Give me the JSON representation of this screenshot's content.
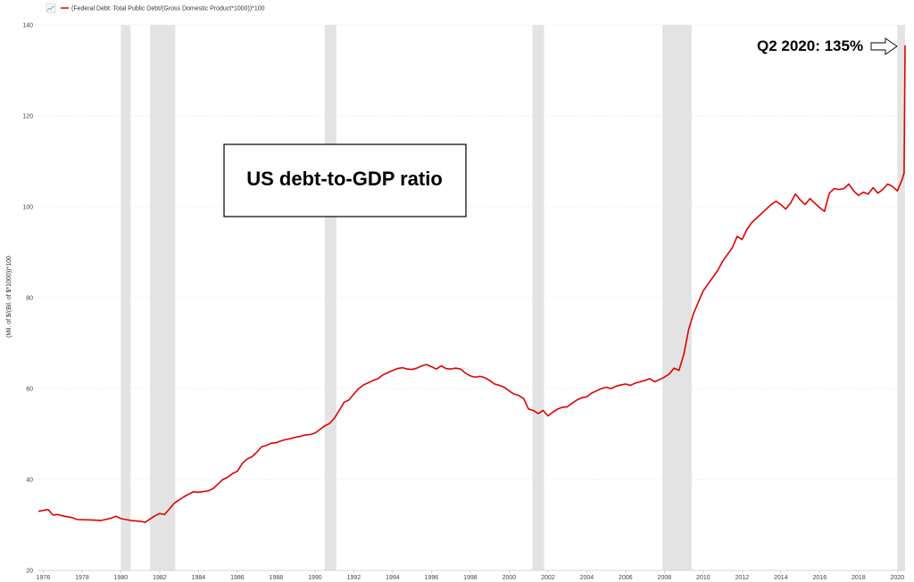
{
  "chart_data": {
    "type": "line",
    "legend": "(Federal Debt: Total Public Debt/(Gross Domestic Product*1000))*100",
    "ylabel": "(Mil. of $/(Bil. of $*1000))*100",
    "title_box": "US debt-to-GDP ratio",
    "callout": "Q2 2020: 135%",
    "ylim": [
      20,
      140
    ],
    "xlim": [
      1975.75,
      2020.4
    ],
    "yticks": [
      20,
      40,
      60,
      80,
      100,
      120,
      140
    ],
    "xticks": [
      1976,
      1978,
      1980,
      1982,
      1984,
      1986,
      1988,
      1990,
      1992,
      1994,
      1996,
      1998,
      2000,
      2002,
      2004,
      2006,
      2008,
      2010,
      2012,
      2014,
      2016,
      2018,
      2020
    ],
    "grid": "horizontal",
    "recessions": [
      [
        1980.0,
        1980.5
      ],
      [
        1981.5,
        1982.8
      ],
      [
        1990.5,
        1991.1
      ],
      [
        2001.2,
        2001.8
      ],
      [
        2007.9,
        2009.4
      ],
      [
        2020.0,
        2020.4
      ]
    ],
    "series": [
      {
        "color": "#e00000",
        "points": [
          [
            1975.75,
            33.0
          ],
          [
            1976.0,
            33.2
          ],
          [
            1976.25,
            33.4
          ],
          [
            1976.5,
            32.2
          ],
          [
            1976.75,
            32.3
          ],
          [
            1977.0,
            32.0
          ],
          [
            1977.5,
            31.6
          ],
          [
            1977.75,
            31.2
          ],
          [
            1978.5,
            31.1
          ],
          [
            1979.0,
            31.0
          ],
          [
            1979.5,
            31.5
          ],
          [
            1979.75,
            31.9
          ],
          [
            1980.0,
            31.4
          ],
          [
            1980.5,
            31.0
          ],
          [
            1981.0,
            30.8
          ],
          [
            1981.25,
            30.6
          ],
          [
            1981.75,
            32.0
          ],
          [
            1982.0,
            32.5
          ],
          [
            1982.25,
            32.3
          ],
          [
            1982.5,
            33.5
          ],
          [
            1982.75,
            34.8
          ],
          [
            1983.0,
            35.5
          ],
          [
            1983.25,
            36.2
          ],
          [
            1983.5,
            36.8
          ],
          [
            1983.75,
            37.3
          ],
          [
            1984.0,
            37.2
          ],
          [
            1984.5,
            37.5
          ],
          [
            1984.75,
            38.0
          ],
          [
            1985.0,
            39.0
          ],
          [
            1985.25,
            40.0
          ],
          [
            1985.5,
            40.5
          ],
          [
            1985.75,
            41.3
          ],
          [
            1986.0,
            41.8
          ],
          [
            1986.25,
            43.5
          ],
          [
            1986.5,
            44.5
          ],
          [
            1986.75,
            45.0
          ],
          [
            1987.0,
            46.0
          ],
          [
            1987.25,
            47.2
          ],
          [
            1987.5,
            47.5
          ],
          [
            1987.75,
            48.0
          ],
          [
            1988.0,
            48.1
          ],
          [
            1988.25,
            48.5
          ],
          [
            1988.5,
            48.8
          ],
          [
            1988.75,
            49.0
          ],
          [
            1989.0,
            49.3
          ],
          [
            1989.25,
            49.5
          ],
          [
            1989.5,
            49.8
          ],
          [
            1989.75,
            49.9
          ],
          [
            1990.0,
            50.2
          ],
          [
            1990.25,
            51.0
          ],
          [
            1990.5,
            51.8
          ],
          [
            1990.75,
            52.3
          ],
          [
            1991.0,
            53.5
          ],
          [
            1991.25,
            55.2
          ],
          [
            1991.5,
            57.0
          ],
          [
            1991.75,
            57.5
          ],
          [
            1992.0,
            58.8
          ],
          [
            1992.25,
            60.0
          ],
          [
            1992.5,
            60.8
          ],
          [
            1992.75,
            61.3
          ],
          [
            1993.0,
            61.8
          ],
          [
            1993.25,
            62.2
          ],
          [
            1993.5,
            63.0
          ],
          [
            1993.75,
            63.5
          ],
          [
            1994.0,
            64.0
          ],
          [
            1994.25,
            64.4
          ],
          [
            1994.5,
            64.6
          ],
          [
            1994.75,
            64.3
          ],
          [
            1995.0,
            64.2
          ],
          [
            1995.25,
            64.5
          ],
          [
            1995.5,
            65.0
          ],
          [
            1995.75,
            65.3
          ],
          [
            1996.0,
            64.8
          ],
          [
            1996.25,
            64.3
          ],
          [
            1996.5,
            65.0
          ],
          [
            1996.75,
            64.4
          ],
          [
            1997.0,
            64.3
          ],
          [
            1997.25,
            64.5
          ],
          [
            1997.5,
            64.3
          ],
          [
            1997.75,
            63.4
          ],
          [
            1998.0,
            62.8
          ],
          [
            1998.25,
            62.5
          ],
          [
            1998.5,
            62.7
          ],
          [
            1998.75,
            62.4
          ],
          [
            1999.0,
            61.8
          ],
          [
            1999.25,
            61.0
          ],
          [
            1999.5,
            60.7
          ],
          [
            1999.75,
            60.3
          ],
          [
            2000.0,
            59.5
          ],
          [
            2000.25,
            58.8
          ],
          [
            2000.5,
            58.5
          ],
          [
            2000.75,
            57.8
          ],
          [
            2001.0,
            55.5
          ],
          [
            2001.25,
            55.2
          ],
          [
            2001.5,
            54.5
          ],
          [
            2001.75,
            55.2
          ],
          [
            2002.0,
            54.0
          ],
          [
            2002.25,
            54.8
          ],
          [
            2002.5,
            55.5
          ],
          [
            2002.75,
            55.9
          ],
          [
            2003.0,
            56.0
          ],
          [
            2003.25,
            56.8
          ],
          [
            2003.5,
            57.5
          ],
          [
            2003.75,
            58.0
          ],
          [
            2004.0,
            58.2
          ],
          [
            2004.25,
            59.0
          ],
          [
            2004.5,
            59.5
          ],
          [
            2004.75,
            60.0
          ],
          [
            2005.0,
            60.3
          ],
          [
            2005.25,
            60.0
          ],
          [
            2005.5,
            60.5
          ],
          [
            2005.75,
            60.8
          ],
          [
            2006.0,
            61.0
          ],
          [
            2006.25,
            60.7
          ],
          [
            2006.5,
            61.2
          ],
          [
            2006.75,
            61.5
          ],
          [
            2007.0,
            61.8
          ],
          [
            2007.25,
            62.2
          ],
          [
            2007.5,
            61.5
          ],
          [
            2007.75,
            62.0
          ],
          [
            2008.0,
            62.5
          ],
          [
            2008.25,
            63.2
          ],
          [
            2008.5,
            64.5
          ],
          [
            2008.75,
            64.0
          ],
          [
            2009.0,
            67.5
          ],
          [
            2009.25,
            73.0
          ],
          [
            2009.5,
            76.5
          ],
          [
            2009.75,
            79.0
          ],
          [
            2010.0,
            81.5
          ],
          [
            2010.25,
            83.0
          ],
          [
            2010.5,
            84.5
          ],
          [
            2010.75,
            86.0
          ],
          [
            2011.0,
            88.0
          ],
          [
            2011.25,
            89.5
          ],
          [
            2011.5,
            91.0
          ],
          [
            2011.75,
            93.5
          ],
          [
            2012.0,
            92.8
          ],
          [
            2012.25,
            95.0
          ],
          [
            2012.5,
            96.5
          ],
          [
            2012.75,
            97.5
          ],
          [
            2013.0,
            98.5
          ],
          [
            2013.25,
            99.5
          ],
          [
            2013.5,
            100.5
          ],
          [
            2013.75,
            101.2
          ],
          [
            2014.0,
            100.5
          ],
          [
            2014.25,
            99.5
          ],
          [
            2014.5,
            100.8
          ],
          [
            2014.75,
            102.8
          ],
          [
            2015.0,
            101.5
          ],
          [
            2015.25,
            100.5
          ],
          [
            2015.5,
            101.8
          ],
          [
            2015.75,
            100.8
          ],
          [
            2016.0,
            99.8
          ],
          [
            2016.25,
            99.0
          ],
          [
            2016.5,
            103.0
          ],
          [
            2016.75,
            104.0
          ],
          [
            2017.0,
            103.8
          ],
          [
            2017.25,
            104.0
          ],
          [
            2017.5,
            105.0
          ],
          [
            2017.75,
            103.5
          ],
          [
            2018.0,
            102.5
          ],
          [
            2018.25,
            103.2
          ],
          [
            2018.5,
            102.8
          ],
          [
            2018.75,
            104.2
          ],
          [
            2019.0,
            103.0
          ],
          [
            2019.25,
            103.8
          ],
          [
            2019.5,
            105.0
          ],
          [
            2019.75,
            104.5
          ],
          [
            2020.0,
            103.5
          ],
          [
            2020.25,
            106.0
          ],
          [
            2020.35,
            107.5
          ],
          [
            2020.4,
            135.5
          ]
        ]
      }
    ]
  }
}
